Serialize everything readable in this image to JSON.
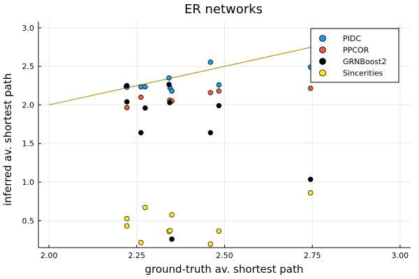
{
  "chart_data": {
    "type": "scatter",
    "title": "ER networks",
    "xlabel": "ground-truth av. shortest path",
    "ylabel": "inferred av. shortest path",
    "xlim": [
      1.97,
      3.03
    ],
    "ylim": [
      0.15,
      3.08
    ],
    "xticks": [
      2.0,
      2.25,
      2.5,
      2.75,
      3.0
    ],
    "xtick_labels": [
      "2.00",
      "2.25",
      "2.50",
      "2.75",
      "3.00"
    ],
    "yticks": [
      0.5,
      1.0,
      1.5,
      2.0,
      2.5,
      3.0
    ],
    "ytick_labels": [
      "0.5",
      "1.0",
      "1.5",
      "2.0",
      "2.5",
      "3.0"
    ],
    "grid": true,
    "legend_position": "top-right",
    "reference_line": {
      "x": [
        2.0,
        3.0
      ],
      "y": [
        2.0,
        3.0
      ],
      "color": "#b8941f"
    },
    "series": [
      {
        "name": "PIDC",
        "color": "#1f96e2",
        "x": [
          2.22,
          2.222,
          2.262,
          2.274,
          2.342,
          2.345,
          2.35,
          2.46,
          2.484,
          2.745
        ],
        "y": [
          2.24,
          2.23,
          2.235,
          2.235,
          2.35,
          2.22,
          2.18,
          2.555,
          2.26,
          2.49
        ]
      },
      {
        "name": "PPCOR",
        "color": "#e15f3c",
        "x": [
          2.222,
          2.262,
          2.344,
          2.35,
          2.46,
          2.484,
          2.745
        ],
        "y": [
          1.965,
          2.1,
          2.06,
          2.05,
          2.16,
          2.18,
          2.215
        ]
      },
      {
        "name": "GRNBoost2",
        "color": "#000000",
        "x": [
          2.222,
          2.222,
          2.262,
          2.274,
          2.342,
          2.344,
          2.35,
          2.46,
          2.484,
          2.745
        ],
        "y": [
          2.04,
          2.25,
          1.64,
          1.96,
          2.265,
          2.03,
          0.26,
          1.64,
          1.99,
          1.035
        ]
      },
      {
        "name": "Sincerities",
        "color": "#fde725",
        "x": [
          2.222,
          2.222,
          2.262,
          2.274,
          2.342,
          2.345,
          2.35,
          2.46,
          2.484,
          2.745
        ],
        "y": [
          0.525,
          0.43,
          0.215,
          0.67,
          0.36,
          0.37,
          0.575,
          0.195,
          0.365,
          0.86
        ]
      }
    ]
  }
}
